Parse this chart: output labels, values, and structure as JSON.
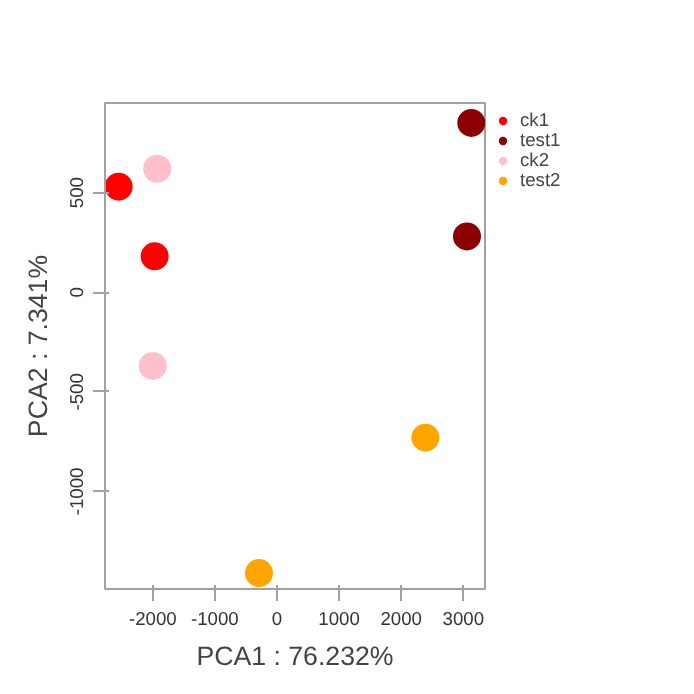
{
  "chart_data": {
    "type": "scatter",
    "xlabel": "PCA1 : 76.232%",
    "ylabel": "PCA2 : 7.341%",
    "xlim": [
      -2770,
      3350
    ],
    "ylim": [
      -1490,
      950
    ],
    "xticks": [
      -2000,
      -1000,
      0,
      1000,
      2000,
      3000
    ],
    "yticks": [
      -1000,
      -500,
      0,
      500
    ],
    "grid": false,
    "legend": "top right",
    "marker": "circle",
    "series": [
      {
        "name": "ck1",
        "color": "#ff0000",
        "x": [
          -2550,
          -1970
        ],
        "values": [
          530,
          180
        ]
      },
      {
        "name": "test1",
        "color": "#8b0000",
        "x": [
          3130,
          3060
        ],
        "values": [
          850,
          280
        ]
      },
      {
        "name": "ck2",
        "color": "#ffc0cb",
        "x": [
          -1930,
          -2000
        ],
        "values": [
          620,
          -370
        ]
      },
      {
        "name": "test2",
        "color": "#ffa500",
        "x": [
          2390,
          -290
        ],
        "values": [
          -730,
          -1410
        ]
      }
    ]
  }
}
